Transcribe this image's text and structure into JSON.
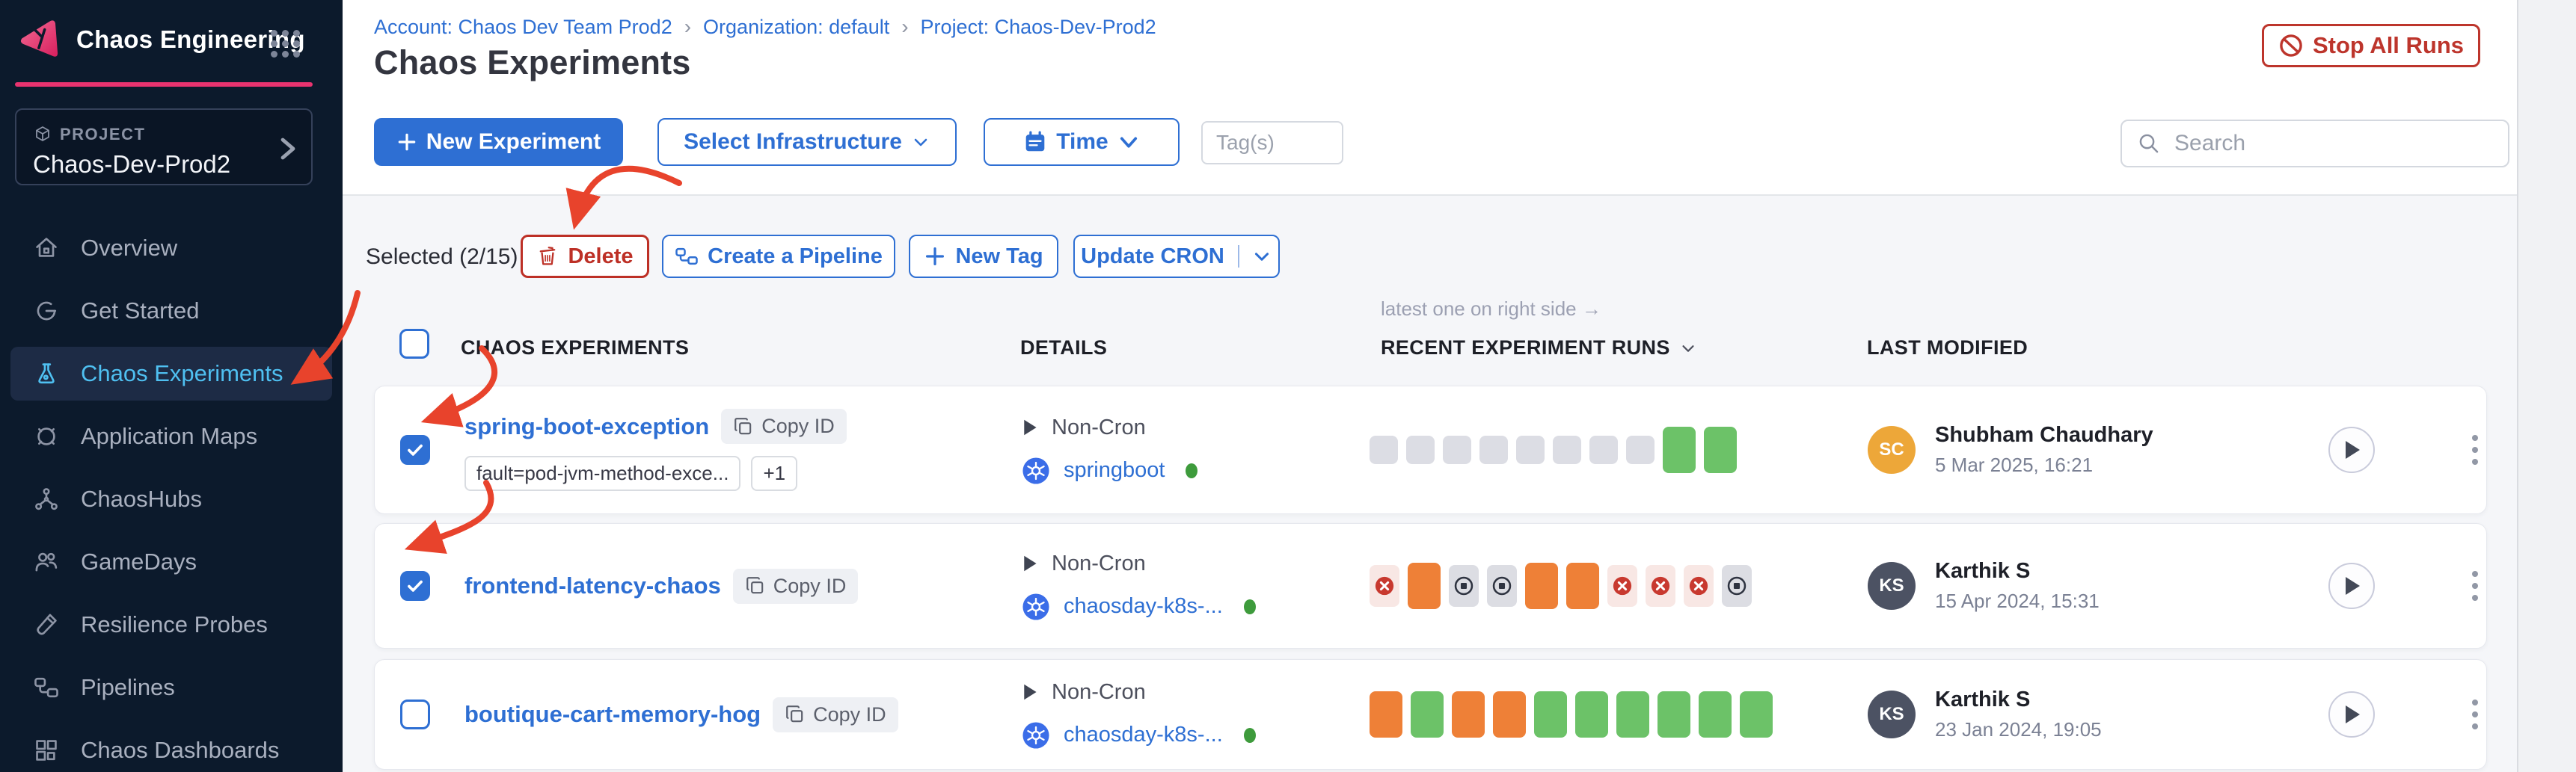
{
  "app": {
    "product_name": "Chaos Engineering"
  },
  "sidebar": {
    "project_label": "PROJECT",
    "project_name": "Chaos-Dev-Prod2",
    "items": [
      {
        "label": "Overview",
        "icon": "home-icon",
        "active": false
      },
      {
        "label": "Get Started",
        "icon": "get-started-icon",
        "active": false
      },
      {
        "label": "Chaos Experiments",
        "icon": "flask-icon",
        "active": true
      },
      {
        "label": "Application Maps",
        "icon": "target-icon",
        "active": false
      },
      {
        "label": "ChaosHubs",
        "icon": "network-icon",
        "active": false
      },
      {
        "label": "GameDays",
        "icon": "people-icon",
        "active": false
      },
      {
        "label": "Resilience Probes",
        "icon": "test-tube-icon",
        "active": false
      },
      {
        "label": "Pipelines",
        "icon": "pipeline-icon",
        "active": false
      },
      {
        "label": "Chaos Dashboards",
        "icon": "dashboard-icon",
        "active": false
      }
    ]
  },
  "breadcrumb": {
    "account": "Account: Chaos Dev Team Prod2",
    "organization": "Organization: default",
    "project": "Project: Chaos-Dev-Prod2",
    "separator": "›"
  },
  "page": {
    "title": "Chaos Experiments",
    "stop_all_runs": "Stop All Runs"
  },
  "toolbar": {
    "new_experiment": "New Experiment",
    "select_infrastructure": "Select Infrastructure",
    "time": "Time",
    "tags_placeholder": "Tag(s)",
    "search_placeholder": "Search"
  },
  "selection_bar": {
    "selected_label": "Selected (2/15)",
    "delete": "Delete",
    "create_pipeline": "Create a Pipeline",
    "new_tag": "New Tag",
    "update_cron": "Update CRON"
  },
  "table": {
    "runs_annotation": "latest one on right side →",
    "headers": {
      "experiments": "CHAOS EXPERIMENTS",
      "details": "DETAILS",
      "recent_runs": "RECENT EXPERIMENT RUNS",
      "last_modified": "LAST MODIFIED"
    },
    "copy_id_label": "Copy ID",
    "rows": [
      {
        "name": "spring-boot-exception",
        "selected": true,
        "tags": [
          "fault=pod-jvm-method-exce...",
          "+1"
        ],
        "schedule": "Non-Cron",
        "infrastructure": "springboot",
        "infra_status_color": "#3e9b3c",
        "runs": [
          "na",
          "na",
          "na",
          "na",
          "na",
          "na",
          "na",
          "na",
          "passed",
          "passed"
        ],
        "modified_by": {
          "initials": "SC",
          "name": "Shubham Chaudhary",
          "date": "5 Mar 2025, 16:21",
          "avatar_color": "#eda739"
        }
      },
      {
        "name": "frontend-latency-chaos",
        "selected": true,
        "tags": [],
        "schedule": "Non-Cron",
        "infrastructure": "chaosday-k8s-...",
        "infra_status_color": "#3e9b3c",
        "runs": [
          "failed",
          "aborted",
          "stopped",
          "stopped",
          "aborted",
          "aborted",
          "failed",
          "failed",
          "failed",
          "stopped"
        ],
        "modified_by": {
          "initials": "KS",
          "name": "Karthik S",
          "date": "15 Apr 2024, 15:31",
          "avatar_color": "#4c5263"
        }
      },
      {
        "name": "boutique-cart-memory-hog",
        "selected": false,
        "tags": [],
        "schedule": "Non-Cron",
        "infrastructure": "chaosday-k8s-...",
        "infra_status_color": "#3e9b3c",
        "runs": [
          "aborted",
          "passed",
          "aborted",
          "aborted",
          "passed",
          "passed",
          "passed",
          "passed",
          "passed",
          "passed"
        ],
        "modified_by": {
          "initials": "KS",
          "name": "Karthik S",
          "date": "23 Jan 2024, 19:05",
          "avatar_color": "#4c5263"
        }
      }
    ]
  },
  "colors": {
    "accent_blue": "#2e6fd3",
    "accent_pink": "#e9336f",
    "danger_red": "#bd3026",
    "annotation_red": "#e8432c",
    "run_passed": "#6cc268",
    "run_aborted": "#ee8037",
    "run_na": "#dcdde4",
    "sidebar_bg": "#0c1a2c",
    "active_item_text": "#4fc0f1"
  }
}
